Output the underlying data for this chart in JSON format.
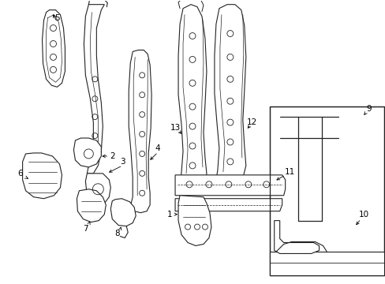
{
  "background_color": "#ffffff",
  "line_color": "#222222",
  "label_color": "#000000",
  "figsize": [
    4.89,
    3.6
  ],
  "dpi": 100,
  "xlim": [
    0,
    489
  ],
  "ylim": [
    0,
    360
  ]
}
